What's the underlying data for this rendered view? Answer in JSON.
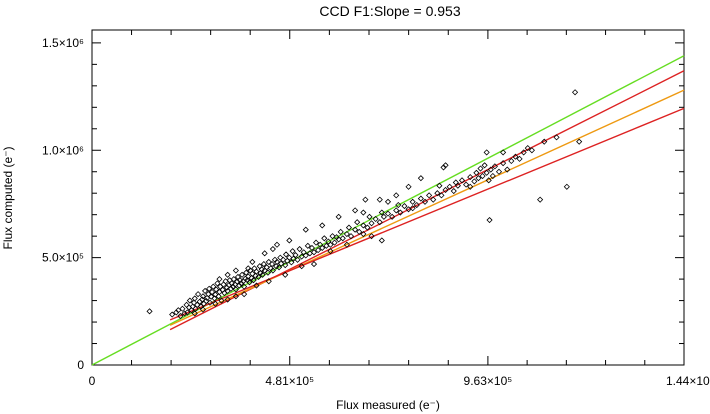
{
  "chart_data": {
    "type": "scatter",
    "title": "CCD F1:Slope =   0.953",
    "xlabel": "Flux measured (e⁻)",
    "ylabel": "Flux computed (e⁻)",
    "xlim": [
      0,
      1440000
    ],
    "ylim": [
      0,
      1560000
    ],
    "x_ticks": [
      {
        "value": 0,
        "label": "0"
      },
      {
        "value": 481000,
        "label": "4.81×10⁵"
      },
      {
        "value": 963000,
        "label": "9.63×10⁵"
      },
      {
        "value": 1440000,
        "label": "1.44×10⁶"
      }
    ],
    "y_ticks": [
      {
        "value": 0,
        "label": "0"
      },
      {
        "value": 500000,
        "label": "5.0×10⁵"
      },
      {
        "value": 1000000,
        "label": "1.0×10⁶"
      },
      {
        "value": 1500000,
        "label": "1.5×10⁶"
      }
    ],
    "grid": false,
    "lines": [
      {
        "color": "#66dd22",
        "points": [
          [
            0,
            0
          ],
          [
            1440000,
            1440000
          ]
        ]
      },
      {
        "color": "#dd2222",
        "points": [
          [
            190000,
            165000
          ],
          [
            1440000,
            1370000
          ]
        ]
      },
      {
        "color": "#ee9911",
        "points": [
          [
            190000,
            185000
          ],
          [
            1440000,
            1280000
          ]
        ]
      },
      {
        "color": "#dd2222",
        "points": [
          [
            190000,
            210000
          ],
          [
            1440000,
            1195000
          ]
        ]
      }
    ],
    "points": [
      [
        140000,
        250000
      ],
      [
        195000,
        235000
      ],
      [
        205000,
        245000
      ],
      [
        210000,
        255000
      ],
      [
        215000,
        228000
      ],
      [
        220000,
        262000
      ],
      [
        225000,
        240000
      ],
      [
        230000,
        280000
      ],
      [
        232000,
        245000
      ],
      [
        236000,
        268000
      ],
      [
        238000,
        300000
      ],
      [
        242000,
        255000
      ],
      [
        245000,
        272000
      ],
      [
        248000,
        290000
      ],
      [
        250000,
        310000
      ],
      [
        252000,
        262000
      ],
      [
        256000,
        280000
      ],
      [
        258000,
        330000
      ],
      [
        262000,
        295000
      ],
      [
        265000,
        272000
      ],
      [
        268000,
        305000
      ],
      [
        270000,
        320000
      ],
      [
        272000,
        285000
      ],
      [
        275000,
        345000
      ],
      [
        278000,
        298000
      ],
      [
        280000,
        312000
      ],
      [
        283000,
        330000
      ],
      [
        285000,
        355000
      ],
      [
        287000,
        290000
      ],
      [
        290000,
        318000
      ],
      [
        292000,
        340000
      ],
      [
        295000,
        365000
      ],
      [
        298000,
        310000
      ],
      [
        300000,
        328000
      ],
      [
        302000,
        352000
      ],
      [
        305000,
        380000
      ],
      [
        308000,
        320000
      ],
      [
        310000,
        340000
      ],
      [
        312000,
        365000
      ],
      [
        315000,
        300000
      ],
      [
        318000,
        350000
      ],
      [
        320000,
        375000
      ],
      [
        322000,
        335000
      ],
      [
        325000,
        390000
      ],
      [
        328000,
        360000
      ],
      [
        330000,
        345000
      ],
      [
        333000,
        372000
      ],
      [
        335000,
        395000
      ],
      [
        338000,
        355000
      ],
      [
        340000,
        380000
      ],
      [
        343000,
        365000
      ],
      [
        345000,
        400000
      ],
      [
        348000,
        375000
      ],
      [
        350000,
        352000
      ],
      [
        353000,
        388000
      ],
      [
        355000,
        410000
      ],
      [
        358000,
        370000
      ],
      [
        360000,
        395000
      ],
      [
        363000,
        380000
      ],
      [
        365000,
        420000
      ],
      [
        368000,
        390000
      ],
      [
        370000,
        365000
      ],
      [
        373000,
        402000
      ],
      [
        375000,
        430000
      ],
      [
        378000,
        395000
      ],
      [
        380000,
        412000
      ],
      [
        383000,
        385000
      ],
      [
        385000,
        440000
      ],
      [
        388000,
        405000
      ],
      [
        390000,
        425000
      ],
      [
        393000,
        395000
      ],
      [
        395000,
        450000
      ],
      [
        398000,
        415000
      ],
      [
        400000,
        435000
      ],
      [
        405000,
        410000
      ],
      [
        408000,
        460000
      ],
      [
        410000,
        428000
      ],
      [
        413000,
        445000
      ],
      [
        415000,
        420000
      ],
      [
        418000,
        470000
      ],
      [
        420000,
        440000
      ],
      [
        425000,
        455000
      ],
      [
        428000,
        430000
      ],
      [
        430000,
        480000
      ],
      [
        435000,
        450000
      ],
      [
        438000,
        470000
      ],
      [
        440000,
        440000
      ],
      [
        445000,
        490000
      ],
      [
        448000,
        460000
      ],
      [
        450000,
        480000
      ],
      [
        455000,
        455000
      ],
      [
        458000,
        500000
      ],
      [
        460000,
        472000
      ],
      [
        465000,
        490000
      ],
      [
        470000,
        465000
      ],
      [
        472000,
        515000
      ],
      [
        475000,
        485000
      ],
      [
        480000,
        500000
      ],
      [
        485000,
        478000
      ],
      [
        488000,
        530000
      ],
      [
        490000,
        495000
      ],
      [
        495000,
        512000
      ],
      [
        500000,
        490000
      ],
      [
        505000,
        540000
      ],
      [
        510000,
        505000
      ],
      [
        515000,
        525000
      ],
      [
        520000,
        510000
      ],
      [
        525000,
        555000
      ],
      [
        530000,
        520000
      ],
      [
        535000,
        545000
      ],
      [
        540000,
        525000
      ],
      [
        545000,
        570000
      ],
      [
        550000,
        535000
      ],
      [
        555000,
        560000
      ],
      [
        560000,
        545000
      ],
      [
        565000,
        590000
      ],
      [
        570000,
        555000
      ],
      [
        575000,
        575000
      ],
      [
        580000,
        560000
      ],
      [
        585000,
        600000
      ],
      [
        590000,
        570000
      ],
      [
        595000,
        595000
      ],
      [
        600000,
        585000
      ],
      [
        605000,
        620000
      ],
      [
        610000,
        590000
      ],
      [
        620000,
        610000
      ],
      [
        625000,
        640000
      ],
      [
        630000,
        600000
      ],
      [
        640000,
        630000
      ],
      [
        645000,
        665000
      ],
      [
        650000,
        620000
      ],
      [
        660000,
        650000
      ],
      [
        670000,
        640000
      ],
      [
        675000,
        690000
      ],
      [
        680000,
        660000
      ],
      [
        690000,
        680000
      ],
      [
        700000,
        665000
      ],
      [
        705000,
        710000
      ],
      [
        710000,
        690000
      ],
      [
        720000,
        705000
      ],
      [
        730000,
        690000
      ],
      [
        740000,
        720000
      ],
      [
        745000,
        745000
      ],
      [
        750000,
        710000
      ],
      [
        760000,
        740000
      ],
      [
        770000,
        725000
      ],
      [
        780000,
        760000
      ],
      [
        790000,
        745000
      ],
      [
        800000,
        775000
      ],
      [
        810000,
        760000
      ],
      [
        820000,
        790000
      ],
      [
        830000,
        770000
      ],
      [
        840000,
        800000
      ],
      [
        845000,
        835000
      ],
      [
        850000,
        790000
      ],
      [
        860000,
        815000
      ],
      [
        870000,
        830000
      ],
      [
        880000,
        810000
      ],
      [
        885000,
        850000
      ],
      [
        890000,
        835000
      ],
      [
        900000,
        860000
      ],
      [
        910000,
        840000
      ],
      [
        920000,
        875000
      ],
      [
        930000,
        855000
      ],
      [
        935000,
        895000
      ],
      [
        940000,
        870000
      ],
      [
        945000,
        915000
      ],
      [
        950000,
        880000
      ],
      [
        955000,
        930000
      ],
      [
        960000,
        895000
      ],
      [
        965000,
        860000
      ],
      [
        970000,
        910000
      ],
      [
        975000,
        880000
      ],
      [
        980000,
        925000
      ],
      [
        990000,
        900000
      ],
      [
        1000000,
        940000
      ],
      [
        1010000,
        910000
      ],
      [
        1020000,
        950000
      ],
      [
        1030000,
        970000
      ],
      [
        1040000,
        960000
      ],
      [
        1050000,
        990000
      ],
      [
        1060000,
        1010000
      ],
      [
        1070000,
        1000000
      ],
      [
        1100000,
        1040000
      ],
      [
        1130000,
        1060000
      ],
      [
        1175000,
        1270000
      ],
      [
        1185000,
        1040000
      ],
      [
        600000,
        690000
      ],
      [
        560000,
        650000
      ],
      [
        520000,
        630000
      ],
      [
        450000,
        560000
      ],
      [
        440000,
        540000
      ],
      [
        420000,
        520000
      ],
      [
        480000,
        580000
      ],
      [
        390000,
        480000
      ],
      [
        380000,
        450000
      ],
      [
        350000,
        440000
      ],
      [
        330000,
        420000
      ],
      [
        310000,
        400000
      ],
      [
        720000,
        760000
      ],
      [
        780000,
        730000
      ],
      [
        620000,
        560000
      ],
      [
        680000,
        600000
      ],
      [
        540000,
        470000
      ],
      [
        510000,
        460000
      ],
      [
        470000,
        420000
      ],
      [
        430000,
        390000
      ],
      [
        400000,
        370000
      ],
      [
        370000,
        330000
      ],
      [
        350000,
        320000
      ],
      [
        330000,
        305000
      ],
      [
        300000,
        285000
      ],
      [
        270000,
        258000
      ],
      [
        250000,
        240000
      ],
      [
        860000,
        930000
      ],
      [
        770000,
        830000
      ],
      [
        700000,
        770000
      ],
      [
        640000,
        720000
      ],
      [
        580000,
        530000
      ],
      [
        660000,
        710000
      ],
      [
        920000,
        830000
      ],
      [
        960000,
        990000
      ],
      [
        1000000,
        990000
      ],
      [
        1090000,
        770000
      ],
      [
        1155000,
        830000
      ],
      [
        967000,
        675000
      ],
      [
        855000,
        920000
      ],
      [
        800000,
        870000
      ],
      [
        740000,
        790000
      ],
      [
        665000,
        770000
      ],
      [
        705000,
        580000
      ],
      [
        660000,
        610000
      ]
    ]
  }
}
